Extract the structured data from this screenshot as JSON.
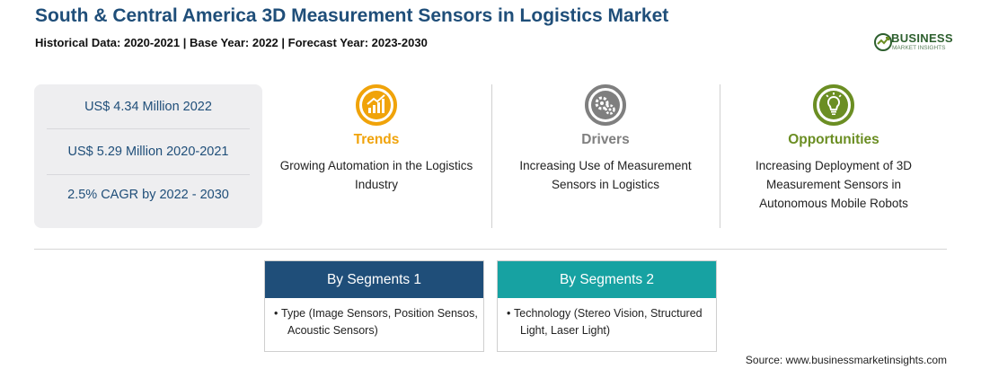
{
  "header": {
    "title": "South & Central America 3D Measurement Sensors in Logistics Market",
    "subtitle": "Historical Data: 2020-2021 | Base Year: 2022 | Forecast Year: 2023-2030"
  },
  "logo": {
    "name": "BUSINESS",
    "tagline": "MARKET INSIGHTS"
  },
  "stats": [
    "US$ 4.34 Million 2022",
    "US$ 5.29 Million 2020-2021",
    "2.5% CAGR by 2022 - 2030"
  ],
  "columns": [
    {
      "heading": "Trends",
      "text_line1": "Growing Automation in the Logistics",
      "text_line2": "Industry",
      "text_line3": "",
      "color": "#f0a30a",
      "icon": "trend-chart-icon"
    },
    {
      "heading": "Drivers",
      "text_line1": "Increasing Use of Measurement",
      "text_line2": "Sensors in Logistics",
      "text_line3": "",
      "color": "#7f7f7f",
      "icon": "gears-icon"
    },
    {
      "heading": "Opportunities",
      "text_line1": "Increasing Deployment of 3D",
      "text_line2": "Measurement Sensors in",
      "text_line3": "Autonomous Mobile Robots",
      "color": "#6b8e23",
      "icon": "lightbulb-icon"
    }
  ],
  "segments": [
    {
      "title": "By Segments 1",
      "color": "#1f4e79",
      "line1": "Type (Image Sensors, Position Sensos,",
      "line2": "Acoustic Sensors)"
    },
    {
      "title": "By Segments 2",
      "color": "#17a2a2",
      "line1": "Technology (Stereo Vision, Structured",
      "line2": "Light, Laser Light)"
    }
  ],
  "source": "Source: www.businessmarketinsights.com"
}
